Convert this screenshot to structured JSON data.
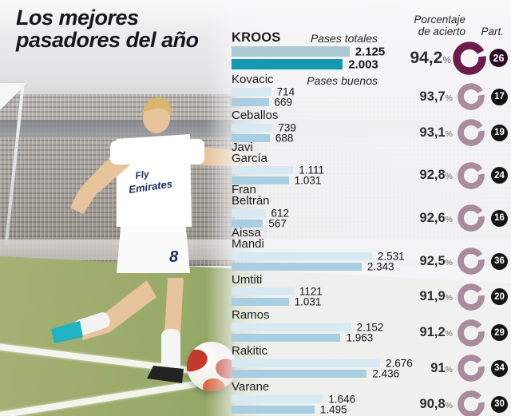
{
  "title": {
    "line1": "Los mejores",
    "line2": "pasadores del año"
  },
  "headers": {
    "total_passes": "Pases totales",
    "good_passes": "Pases buenos",
    "accuracy_line1": "Porcentaje",
    "accuracy_line2": "de acierto",
    "participation": "Part."
  },
  "photo": {
    "jersey_sponsor": "Fly Emirates",
    "jersey_number": "8"
  },
  "colors": {
    "highlight_bar_total": "#abcad6",
    "highlight_bar_good": "#1697b2",
    "bar_total": "#d7eaf3",
    "bar_good": "#a7cee1",
    "highlight_ring": "#6d1b4d",
    "ring": "#a98b9b",
    "highlight_badge": "#2d0a23",
    "badge": "#141414",
    "title_text": "#16161d"
  },
  "chart_data": {
    "type": "bar",
    "title": "Los mejores pasadores del año",
    "series_labels": [
      "Pases totales",
      "Pases buenos"
    ],
    "extra_columns": [
      "Porcentaje de acierto",
      "Part."
    ],
    "legend_position": "inline-top",
    "grid": false,
    "x_max": 2676,
    "players": [
      {
        "name": "KROOS",
        "total": 2125,
        "good": 2003,
        "total_label": "2.125",
        "good_label": "2.003",
        "accuracy": 94.2,
        "accuracy_label": "94,2%",
        "part": 26,
        "highlight": true
      },
      {
        "name": "Kovacic",
        "total": 714,
        "good": 669,
        "total_label": "714",
        "good_label": "669",
        "accuracy": 93.7,
        "accuracy_label": "93,7%",
        "part": 17,
        "highlight": false
      },
      {
        "name": "Ceballos",
        "total": 739,
        "good": 688,
        "total_label": "739",
        "good_label": "688",
        "accuracy": 93.1,
        "accuracy_label": "93,1%",
        "part": 19,
        "highlight": false
      },
      {
        "name": "Javi\nGarcía",
        "total": 1111,
        "good": 1031,
        "total_label": "1.111",
        "good_label": "1.031",
        "accuracy": 92.8,
        "accuracy_label": "92,8%",
        "part": 24,
        "highlight": false
      },
      {
        "name": "Fran\nBeltrán",
        "total": 612,
        "good": 567,
        "total_label": "612",
        "good_label": "567",
        "accuracy": 92.6,
        "accuracy_label": "92,6%",
        "part": 16,
        "highlight": false
      },
      {
        "name": "Aissa\nMandi",
        "total": 2531,
        "good": 2343,
        "total_label": "2.531",
        "good_label": "2.343",
        "accuracy": 92.5,
        "accuracy_label": "92,5%",
        "part": 36,
        "highlight": false
      },
      {
        "name": "Umtiti",
        "total": 1121,
        "good": 1031,
        "total_label": "1121",
        "good_label": "1.031",
        "accuracy": 91.9,
        "accuracy_label": "91,9%",
        "part": 20,
        "highlight": false
      },
      {
        "name": "Ramos",
        "total": 2152,
        "good": 1963,
        "total_label": "2.152",
        "good_label": "1.963",
        "accuracy": 91.2,
        "accuracy_label": "91,2%",
        "part": 29,
        "highlight": false
      },
      {
        "name": "Rakitic",
        "total": 2676,
        "good": 2436,
        "total_label": "2.676",
        "good_label": "2.436",
        "accuracy": 91.0,
        "accuracy_label": "91%",
        "part": 34,
        "highlight": false
      },
      {
        "name": "Varane",
        "total": 1646,
        "good": 1495,
        "total_label": "1.646",
        "good_label": "1.495",
        "accuracy": 90.8,
        "accuracy_label": "90,8%",
        "part": 30,
        "highlight": false
      }
    ]
  }
}
